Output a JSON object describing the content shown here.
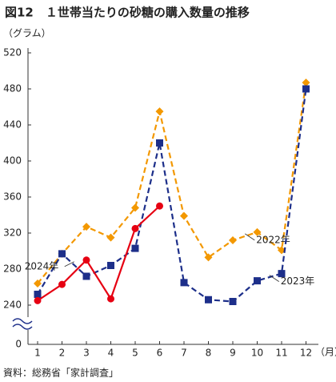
{
  "chart_data": {
    "type": "line",
    "title": "図12　１世帯当たりの砂糖の購入数量の推移",
    "y_label": "（グラム）",
    "x_label": "（月）",
    "source": "資料：総務省「家計調査」",
    "categories": [
      "1",
      "2",
      "3",
      "4",
      "5",
      "6",
      "7",
      "8",
      "9",
      "10",
      "11",
      "12"
    ],
    "series": [
      {
        "name": "2022年",
        "color": "#f39800",
        "marker": "diamond",
        "dashed": true,
        "values": [
          264,
          297,
          327,
          315,
          348,
          455,
          339,
          293,
          312,
          321,
          301,
          487
        ]
      },
      {
        "name": "2023年",
        "color": "#1d2f8a",
        "marker": "square",
        "dashed": true,
        "values": [
          252,
          297,
          272,
          284,
          303,
          420,
          265,
          246,
          244,
          267,
          275,
          480
        ]
      },
      {
        "name": "2024年",
        "color": "#e60012",
        "marker": "circle",
        "dashed": false,
        "values": [
          245,
          263,
          290,
          247,
          325,
          350,
          null,
          null,
          null,
          null,
          null,
          null
        ]
      }
    ],
    "ylim": [
      0,
      520
    ],
    "yticks": [
      0,
      240,
      280,
      320,
      360,
      400,
      440,
      480,
      520
    ],
    "axis_break": true
  }
}
